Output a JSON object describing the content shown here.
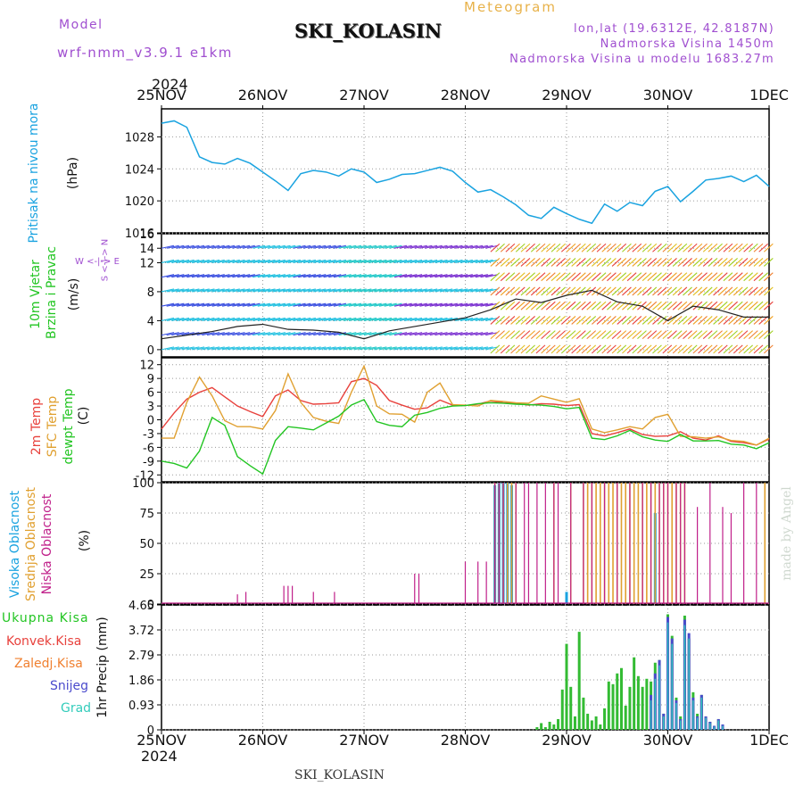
{
  "header": {
    "model_label": "Model",
    "model_value": "wrf-nmm_v3.9.1 e1km",
    "station": "SKI_KOLASIN",
    "product": "Meteogram",
    "coords": "lon,lat (19.6312E, 42.8187N)",
    "elevation": "Nadmorska Visina 1450m",
    "model_elevation": "Nadmorska Visina u modelu 1683.27m"
  },
  "time_axis": {
    "year": "2024",
    "labels": [
      "25NOV",
      "26NOV",
      "27NOV",
      "28NOV",
      "29NOV",
      "30NOV",
      "1DEC"
    ]
  },
  "footer": {
    "station": "SKI_KOLASIN",
    "signature": "made by Angel"
  },
  "colors": {
    "pressure": "#1aa3e0",
    "temp_2m": "#e8413c",
    "temp_sfc": "#e0a030",
    "dewpoint": "#22c522",
    "cloud_high": "#1aa3e0",
    "cloud_mid": "#e0a030",
    "cloud_low": "#c0208a",
    "precip_total": "#33bb33",
    "precip_convective": "#e8413c",
    "precip_freezing": "#f08030",
    "precip_snow": "#4a4acc",
    "precip_graupel": "#33ccbb"
  },
  "chart_data": [
    {
      "type": "line",
      "panel": "pressure",
      "ylabel_main": "Pritisak na nivou mora",
      "ylabel_unit": "(hPa)",
      "yticks": [
        "1028",
        "1024",
        "1020",
        "1016"
      ],
      "ylim": [
        1016,
        1031.5
      ],
      "xlim": [
        0,
        144
      ],
      "series": [
        {
          "x": [
            0,
            3,
            6,
            9,
            12,
            15,
            18,
            21,
            24,
            27,
            30,
            33,
            36,
            39,
            42,
            45,
            48,
            51,
            54,
            57,
            60,
            63,
            66,
            69,
            72,
            75,
            78,
            81,
            84,
            87,
            90,
            93,
            96,
            99,
            102,
            105,
            108,
            111,
            114,
            117,
            120,
            123,
            126,
            129,
            132,
            135,
            138,
            141,
            144
          ],
          "values": [
            1029.7,
            1030,
            1029.2,
            1025.5,
            1024.8,
            1024.6,
            1025.3,
            1024.7,
            1023.6,
            1022.5,
            1021.3,
            1023.4,
            1023.8,
            1023.6,
            1023.1,
            1024,
            1023.6,
            1022.3,
            1022.7,
            1023.3,
            1023.4,
            1023.8,
            1024.2,
            1023.7,
            1022.3,
            1021.1,
            1021.4,
            1020.5,
            1019.5,
            1018.2,
            1017.8,
            1019.2,
            1018.4,
            1017.7,
            1017.2,
            1019.6,
            1018.7,
            1019.8,
            1019.4,
            1021.2,
            1021.8,
            1019.9,
            1021.2,
            1022.6,
            1022.8,
            1023.1,
            1022.4,
            1023.2,
            1021.8
          ]
        }
      ]
    },
    {
      "type": "line",
      "panel": "wind",
      "ylabel_main": "10m Vjetar",
      "ylabel_sub": "Brzina i Pravac",
      "ylabel_unit": "(m/s)",
      "direction_legend": "W <-|-> E",
      "direction_legend_vertical": "S <-|-> N",
      "yticks": [
        "16",
        "14",
        "12",
        "8",
        "4",
        "0"
      ],
      "ylim": [
        -1,
        16
      ],
      "xlim": [
        0,
        144
      ],
      "series": [
        {
          "name": "wind speed",
          "x": [
            0,
            6,
            12,
            18,
            24,
            30,
            36,
            42,
            48,
            54,
            60,
            66,
            72,
            78,
            84,
            90,
            96,
            102,
            108,
            114,
            120,
            126,
            132,
            138,
            144
          ],
          "values": [
            1.5,
            2,
            2.5,
            3.2,
            3.5,
            2.8,
            2.7,
            2.4,
            1.5,
            2.6,
            3.2,
            3.8,
            4.4,
            5.5,
            7,
            6.5,
            7.5,
            8.2,
            6.6,
            6,
            4,
            6,
            5.5,
            4.5,
            4.5
          ]
        }
      ]
    },
    {
      "type": "line",
      "panel": "temperature",
      "ylabels": [
        "2m Temp",
        "SFC Temp",
        "dewpt Temp"
      ],
      "ylabel_unit": "(C)",
      "yticks": [
        "12",
        "9",
        "6",
        "3",
        "0",
        "-3",
        "-6",
        "-9",
        "-12"
      ],
      "ylim": [
        -13.5,
        13.5
      ],
      "xlim": [
        0,
        144
      ],
      "series": [
        {
          "name": "2m Temp",
          "x": [
            0,
            3,
            6,
            9,
            12,
            15,
            18,
            21,
            24,
            27,
            30,
            33,
            36,
            39,
            42,
            45,
            48,
            51,
            54,
            57,
            60,
            63,
            66,
            69,
            72,
            75,
            78,
            81,
            84,
            87,
            90,
            93,
            96,
            99,
            102,
            105,
            108,
            111,
            114,
            117,
            120,
            123,
            126,
            129,
            132,
            135,
            138,
            141,
            144
          ],
          "values": [
            -2,
            1.5,
            4.5,
            6,
            7,
            5,
            3,
            1.8,
            0.7,
            5.2,
            6.5,
            4.2,
            3.4,
            3.5,
            3.7,
            8.3,
            9,
            7.5,
            4.2,
            3.2,
            2.3,
            2.6,
            4.3,
            3.2,
            3.1,
            3.4,
            4.1,
            3.7,
            3.6,
            3.2,
            3.5,
            3.4,
            3.1,
            3.3,
            -3,
            -3.5,
            -2.8,
            -2,
            -3.2,
            -3.6,
            -3.5,
            -2.6,
            -4,
            -4.4,
            -3.5,
            -4.7,
            -5,
            -5.5,
            -4.2
          ]
        },
        {
          "name": "SFC Temp",
          "x": [
            0,
            3,
            6,
            9,
            12,
            15,
            18,
            21,
            24,
            27,
            30,
            33,
            36,
            39,
            42,
            45,
            48,
            51,
            54,
            57,
            60,
            63,
            66,
            69,
            72,
            75,
            78,
            81,
            84,
            87,
            90,
            93,
            96,
            99,
            102,
            105,
            108,
            111,
            114,
            117,
            120,
            123,
            126,
            129,
            132,
            135,
            138,
            141,
            144
          ],
          "values": [
            -4,
            -4,
            3.8,
            9.3,
            5.2,
            -0.2,
            -1.5,
            -1.5,
            -2,
            2,
            10,
            3.8,
            0.5,
            -0.3,
            -0.8,
            6,
            11.7,
            3,
            1.3,
            1.2,
            -0.5,
            6,
            8,
            3.3,
            3.2,
            3,
            4.2,
            4,
            3.7,
            3.6,
            5.2,
            4.5,
            3.8,
            4.6,
            -2,
            -2.8,
            -2.2,
            -1.5,
            -2,
            0.5,
            1.2,
            -3.6,
            -3.7,
            -4,
            -3.7,
            -4.5,
            -4.7,
            -5.5,
            -4
          ]
        },
        {
          "name": "dewpt Temp",
          "x": [
            0,
            3,
            6,
            9,
            12,
            15,
            18,
            21,
            24,
            27,
            30,
            33,
            36,
            39,
            42,
            45,
            48,
            51,
            54,
            57,
            60,
            63,
            66,
            69,
            72,
            75,
            78,
            81,
            84,
            87,
            90,
            93,
            96,
            99,
            102,
            105,
            108,
            111,
            114,
            117,
            120,
            123,
            126,
            129,
            132,
            135,
            138,
            141,
            144
          ],
          "values": [
            -9,
            -9.5,
            -10.5,
            -6.8,
            0.5,
            -1.2,
            -8,
            -10,
            -11.8,
            -4.5,
            -1.5,
            -1.8,
            -2.2,
            -0.7,
            0.8,
            3.2,
            4.4,
            -0.4,
            -1.2,
            -1.5,
            1,
            1.6,
            2.5,
            3,
            3.1,
            3.5,
            3.7,
            3.6,
            3.4,
            3.3,
            3.2,
            2.9,
            2.4,
            2.7,
            -4,
            -4.3,
            -3.5,
            -2.3,
            -3.7,
            -4.4,
            -4.7,
            -3.2,
            -4.6,
            -4.6,
            -4.5,
            -5.3,
            -5.5,
            -6.3,
            -5
          ]
        }
      ]
    },
    {
      "type": "bar",
      "panel": "clouds",
      "ylabels": [
        "Visoka Oblacnost",
        "Srednja Oblacnost",
        "Niska Oblacnost"
      ],
      "ylabel_unit": "(%)",
      "yticks": [
        "100",
        "75",
        "50",
        "25",
        "0"
      ],
      "ylim": [
        0,
        100
      ],
      "xlim": [
        0,
        144
      ],
      "series": [
        {
          "name": "Visoka Oblacnost",
          "x": [
            79,
            80,
            81,
            82,
            83,
            96,
            117
          ],
          "values": [
            98,
            100,
            100,
            100,
            98,
            10,
            75
          ]
        },
        {
          "name": "Srednja Oblacnost",
          "x": [
            79,
            80,
            81,
            82,
            83,
            84,
            93,
            97,
            100,
            101,
            102,
            103,
            104,
            105,
            106,
            107,
            108,
            109,
            110,
            111,
            112,
            113,
            114,
            115,
            116,
            117,
            118,
            119,
            120,
            121,
            122,
            123,
            124,
            143
          ],
          "values": [
            100,
            100,
            100,
            100,
            100,
            100,
            100,
            100,
            100,
            100,
            100,
            100,
            100,
            100,
            100,
            100,
            100,
            100,
            100,
            100,
            100,
            100,
            100,
            100,
            100,
            100,
            100,
            100,
            100,
            100,
            100,
            100,
            100,
            100
          ]
        },
        {
          "name": "Niska Oblacnost",
          "x": [
            18,
            20,
            29,
            30,
            31,
            36,
            41,
            60,
            61,
            72,
            75,
            77,
            79,
            80,
            81,
            84,
            86,
            87,
            89,
            91,
            93,
            94,
            97,
            100,
            102,
            105,
            108,
            111,
            114,
            116,
            118,
            119,
            120,
            122,
            123,
            124,
            127,
            130,
            133,
            135,
            138,
            141
          ],
          "values": [
            8,
            10,
            15,
            15,
            15,
            10,
            10,
            25,
            25,
            35,
            35,
            35,
            100,
            100,
            100,
            100,
            100,
            100,
            100,
            100,
            100,
            100,
            100,
            100,
            100,
            100,
            100,
            100,
            100,
            100,
            100,
            100,
            100,
            100,
            100,
            100,
            80,
            100,
            80,
            75,
            100,
            100
          ]
        }
      ]
    },
    {
      "type": "bar",
      "panel": "precipitation",
      "ylabels": [
        "Ukupna Kisa",
        "Konvek.Kisa",
        "Zaledj.Kisa",
        "Snijeg",
        "Grad"
      ],
      "ylabel_unit": "1hr Precip (mm)",
      "yticks": [
        "4.65",
        "3.72",
        "2.79",
        "1.86",
        "0.93",
        "0"
      ],
      "ylim": [
        0,
        4.65
      ],
      "xlim": [
        0,
        144
      ],
      "series": [
        {
          "name": "Ukupna Kisa",
          "x": [
            89,
            90,
            91,
            92,
            93,
            94,
            95,
            96,
            97,
            98,
            99,
            100,
            101,
            102,
            103,
            104,
            105,
            106,
            107,
            108,
            109,
            110,
            111,
            112,
            113,
            114,
            115,
            116,
            117,
            118,
            119,
            120,
            121,
            122,
            123,
            124,
            125,
            126,
            127,
            128,
            129,
            130,
            131,
            132,
            133
          ],
          "values": [
            0.1,
            0.25,
            0.1,
            0.3,
            0.2,
            0.4,
            1.5,
            3.2,
            1.6,
            0.5,
            3.65,
            1.2,
            0.6,
            0.35,
            0.5,
            0.2,
            0.8,
            1.8,
            1.7,
            2.1,
            2.3,
            0.9,
            1.6,
            2.7,
            2.0,
            1.6,
            1.9,
            1.8,
            2.5,
            2.6,
            0.6,
            4.3,
            3.5,
            1.2,
            0.5,
            4.25,
            3.4,
            1.4,
            0.6,
            1.3,
            0.5,
            0.3,
            0.15,
            0.4,
            0.2
          ]
        },
        {
          "name": "Snijeg",
          "x": [
            116,
            117,
            118,
            119,
            120,
            121,
            122,
            123,
            124,
            125,
            126,
            127,
            128,
            129,
            130,
            131,
            132,
            133
          ],
          "values": [
            1.3,
            2.1,
            2.6,
            0.6,
            4.2,
            3.4,
            1.1,
            0.4,
            4.1,
            3.6,
            1.2,
            0.5,
            1.3,
            0.5,
            0.3,
            0.15,
            0.4,
            0.2
          ]
        },
        {
          "name": "Grad",
          "x": [
            116,
            117,
            118,
            119,
            120,
            121,
            122,
            123,
            124,
            125,
            126,
            127,
            128,
            129,
            130,
            131,
            132,
            133
          ],
          "values": [
            1.1,
            1.9,
            2.4,
            0.5,
            4.0,
            3.2,
            1.0,
            0.35,
            3.9,
            3.4,
            1.1,
            0.45,
            1.2,
            0.45,
            0.25,
            0.12,
            0.35,
            0.15
          ]
        },
        {
          "name": "Konvek.Kisa",
          "x": [],
          "values": []
        },
        {
          "name": "Zaledj.Kisa",
          "x": [],
          "values": []
        }
      ]
    }
  ]
}
